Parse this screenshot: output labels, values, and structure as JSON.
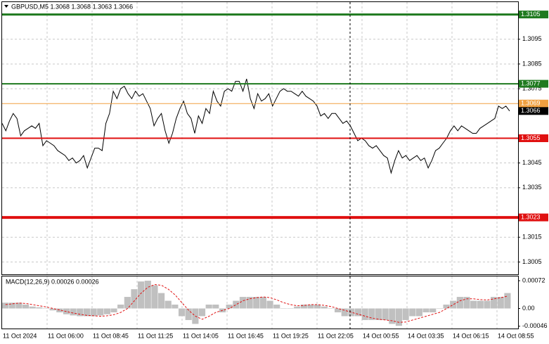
{
  "chart_data": [
    {
      "type": "line",
      "title": "GBPUSD,M5  1.3068 1.3068 1.3063 1.3066",
      "color": "#000000",
      "grid": true,
      "ylim": [
        1.3,
        1.311
      ],
      "yticks": [
        1.3095,
        1.3085,
        1.3075,
        1.3045,
        1.3035,
        1.3015,
        1.3005
      ],
      "xtick_labels": [
        "11 Oct 2024",
        "11 Oct 06:00",
        "11 Oct 08:45",
        "11 Oct 11:25",
        "11 Oct 14:05",
        "11 Oct 16:45",
        "11 Oct 19:25",
        "11 Oct 22:05",
        "14 Oct 00:55",
        "14 Oct 03:35",
        "14 Oct 06:15",
        "14 Oct 08:55"
      ],
      "levels": [
        {
          "value": 1.3105,
          "color": "#1f7a1f",
          "width": 3
        },
        {
          "value": 1.3077,
          "color": "#1f7a1f",
          "width": 2
        },
        {
          "value": 1.3069,
          "color": "#f0a040",
          "width": 1
        },
        {
          "value": 1.3055,
          "color": "#e01010",
          "width": 2
        },
        {
          "value": 1.3023,
          "color": "#e01010",
          "width": 4
        }
      ],
      "current": {
        "value": 1.3066,
        "color": "#000000"
      },
      "values": [
        1.3061,
        1.3058,
        1.3062,
        1.3065,
        1.3063,
        1.3056,
        1.3058,
        1.3059,
        1.306,
        1.3059,
        1.3061,
        1.3052,
        1.3054,
        1.3053,
        1.3052,
        1.305,
        1.3049,
        1.3048,
        1.3046,
        1.3047,
        1.3045,
        1.3046,
        1.3048,
        1.3043,
        1.3047,
        1.3051,
        1.3051,
        1.305,
        1.3061,
        1.3065,
        1.3074,
        1.3071,
        1.3075,
        1.3076,
        1.3073,
        1.3071,
        1.3074,
        1.3072,
        1.3073,
        1.307,
        1.3067,
        1.306,
        1.3063,
        1.3065,
        1.3058,
        1.3053,
        1.3057,
        1.3063,
        1.3067,
        1.307,
        1.3065,
        1.3063,
        1.3057,
        1.3064,
        1.3061,
        1.3067,
        1.3065,
        1.3074,
        1.307,
        1.3068,
        1.3074,
        1.3075,
        1.3074,
        1.3078,
        1.3078,
        1.3074,
        1.3079,
        1.3071,
        1.3067,
        1.3073,
        1.307,
        1.3071,
        1.3073,
        1.3068,
        1.3071,
        1.3074,
        1.3075,
        1.3074,
        1.3074,
        1.3073,
        1.3072,
        1.3074,
        1.3072,
        1.3071,
        1.307,
        1.3068,
        1.3064,
        1.3065,
        1.3063,
        1.3065,
        1.3065,
        1.3063,
        1.3061,
        1.3062,
        1.306,
        1.3057,
        1.3054,
        1.3055,
        1.3054,
        1.3052,
        1.3051,
        1.3052,
        1.305,
        1.3048,
        1.3047,
        1.3041,
        1.3046,
        1.305,
        1.3047,
        1.3048,
        1.3046,
        1.3047,
        1.3048,
        1.3046,
        1.3047,
        1.3043,
        1.3046,
        1.305,
        1.3051,
        1.3053,
        1.3055,
        1.3058,
        1.306,
        1.3058,
        1.306,
        1.3059,
        1.3058,
        1.3057,
        1.3057,
        1.3059,
        1.306,
        1.3061,
        1.3062,
        1.3063,
        1.3068,
        1.3067,
        1.3068,
        1.3066
      ]
    },
    {
      "type": "macd",
      "title": "MACD(12,26,9) 0.00026 0.00026",
      "ylim": [
        -0.00052,
        0.00083
      ],
      "yticks": [
        0.00072,
        {
          "value": 0,
          "label": "0.00"
        },
        -0.00046
      ],
      "histogram": {
        "color": "#c0c0c0",
        "values": [
          0.00015,
          0.00015,
          0.00015,
          0.0001,
          5e-05,
          3e-05,
          0,
          -5e-05,
          -0.0001,
          -0.00015,
          -0.00018,
          -0.0002,
          -0.0002,
          -0.0002,
          -0.00018,
          -0.00015,
          -0.0001,
          0.0001,
          0.0003,
          0.0005,
          0.0007,
          0.00072,
          0.0006,
          0.0004,
          0.0002,
          0.0001,
          -0.0002,
          -0.0003,
          -0.0004,
          -0.0002,
          0.0001,
          0.0001,
          -0.0001,
          0.0001,
          0.0002,
          0.0003,
          0.0003,
          0.0003,
          0.0003,
          0.0002,
          0.0001,
          0,
          0,
          5e-05,
          0.0001,
          0.0001,
          0.0001,
          5e-05,
          0,
          -0.0001,
          -0.0002,
          -0.0002,
          -0.0002,
          -0.0003,
          -0.0003,
          -0.0003,
          -0.0003,
          -0.0004,
          -0.00045,
          -0.0003,
          -0.0002,
          -0.0002,
          -0.0001,
          -0.0001,
          0,
          0.0001,
          0.0002,
          0.0003,
          0.0003,
          0.0002,
          0.0002,
          0.0002,
          0.0003,
          0.0003,
          0.0004
        ]
      },
      "signal": {
        "color": "#e01010",
        "values": [
          0.0001,
          0.00012,
          0.00014,
          0.00013,
          0.0001,
          7e-05,
          4e-05,
          0,
          -4e-05,
          -8e-05,
          -0.00012,
          -0.00015,
          -0.00018,
          -0.00019,
          -0.0002,
          -0.00019,
          -0.00016,
          -0.0001,
          0,
          0.0002,
          0.0004,
          0.00055,
          0.00062,
          0.0006,
          0.0005,
          0.00035,
          0.00015,
          -5e-05,
          -0.0002,
          -0.00028,
          -0.0002,
          -0.0001,
          -5e-05,
          0,
          0.0001,
          0.0002,
          0.00025,
          0.00028,
          0.0003,
          0.00028,
          0.00022,
          0.00015,
          0.0001,
          7e-05,
          8e-05,
          0.0001,
          0.0001,
          8e-05,
          5e-05,
          0,
          -5e-05,
          -0.0001,
          -0.00015,
          -0.0002,
          -0.00025,
          -0.00028,
          -0.0003,
          -0.00032,
          -0.00036,
          -0.00035,
          -0.0003,
          -0.00025,
          -0.0002,
          -0.00015,
          -0.0001,
          0,
          0.0001,
          0.0002,
          0.00025,
          0.00025,
          0.00023,
          0.00022,
          0.00025,
          0.00028,
          0.00032
        ]
      }
    }
  ]
}
